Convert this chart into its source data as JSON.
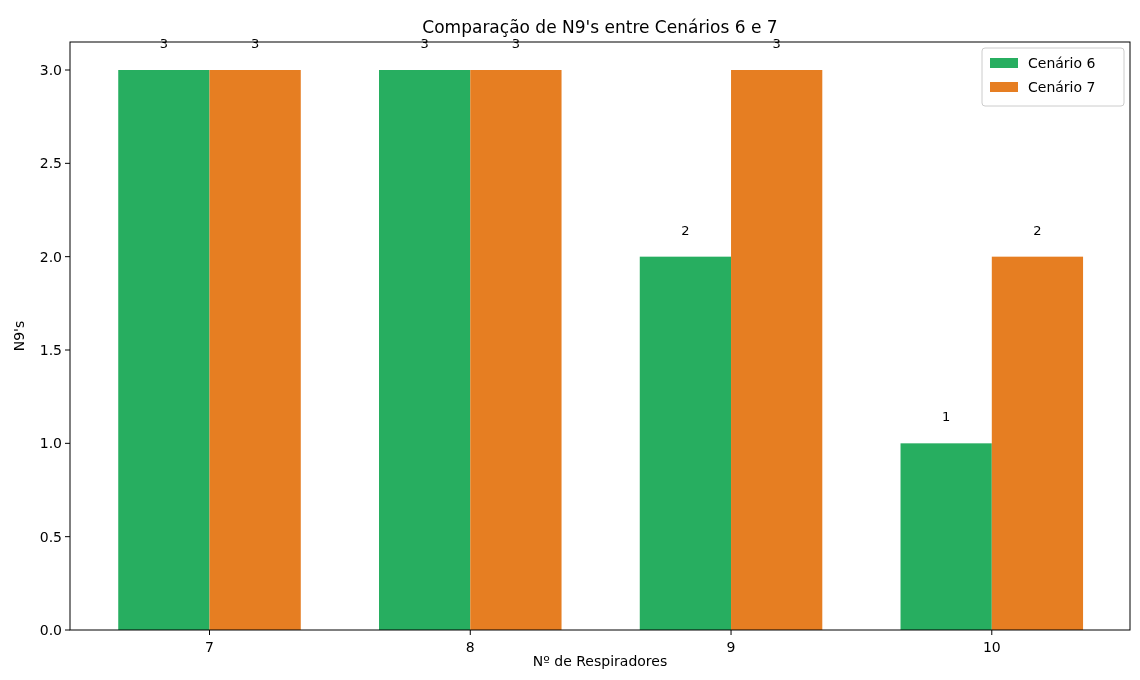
{
  "chart_data": {
    "type": "bar",
    "title": "Comparação de N9's entre Cenários 6 e 7",
    "xlabel": "Nº de Respiradores",
    "ylabel": "N9's",
    "categories": [
      "7",
      "8",
      "9",
      "10"
    ],
    "series": [
      {
        "name": "Cenário 6",
        "color": "#27ae60",
        "values": [
          3,
          3,
          2,
          1
        ]
      },
      {
        "name": "Cenário 7",
        "color": "#e67e22",
        "values": [
          3,
          3,
          3,
          2
        ]
      }
    ],
    "ylim": [
      0,
      3.15
    ],
    "yticks": [
      {
        "value": 0,
        "label": "0.0"
      },
      {
        "value": 0.5,
        "label": "0.5"
      },
      {
        "value": 1,
        "label": "1.0"
      },
      {
        "value": 1.5,
        "label": "1.5"
      },
      {
        "value": 2,
        "label": "2.0"
      },
      {
        "value": 2.5,
        "label": "2.5"
      },
      {
        "value": 3,
        "label": "3.0"
      }
    ],
    "data_labels": true,
    "legend": "top right",
    "grid": false
  }
}
